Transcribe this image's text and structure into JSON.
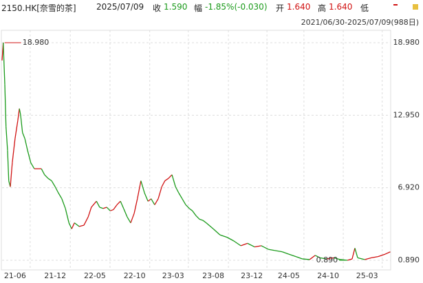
{
  "header": {
    "code": "2150.HK[奈雪的茶]",
    "date": "2025/07/09",
    "close_label": "收",
    "close": "1.590",
    "change_label": "幅",
    "change": "-1.85%(-0.030)",
    "open_label": "开",
    "open": "1.640",
    "high_label": "高",
    "high": "1.640",
    "low_label": "低",
    "range": "2021/06/30-2025/07/09(988日)"
  },
  "chart_data": {
    "type": "line",
    "up_color": "#d01010",
    "down_color": "#1a9a1a",
    "x": [
      0,
      3,
      7,
      10,
      14,
      17,
      21,
      26,
      33,
      40,
      44,
      47,
      52,
      58,
      65,
      73,
      82,
      91,
      100,
      108,
      117,
      126,
      135,
      143,
      152,
      161,
      170,
      177,
      184,
      196,
      208,
      219,
      227,
      240,
      248,
      257,
      266,
      275,
      283,
      292,
      301,
      309,
      318,
      327,
      336,
      344,
      353,
      362,
      371,
      379,
      388,
      397,
      406,
      414,
      423,
      432,
      441,
      449,
      458,
      467,
      476,
      484,
      493,
      502,
      511,
      519,
      537,
      554,
      572,
      589,
      607,
      624,
      642,
      659,
      677,
      694,
      712,
      729,
      747,
      764,
      782,
      796,
      808,
      825,
      843,
      860,
      878,
      890,
      897,
      904,
      922,
      939,
      956,
      974,
      987
    ],
    "values": [
      17.5,
      18.98,
      15.5,
      12,
      10,
      7.5,
      7,
      9,
      11,
      12.5,
      13.5,
      13,
      11.5,
      11,
      10,
      9,
      8.5,
      8.5,
      8.5,
      8,
      7.7,
      7.5,
      7,
      6.5,
      6,
      5.2,
      4,
      3.5,
      4,
      3.7,
      3.8,
      4.5,
      5.3,
      5.8,
      5.3,
      5.2,
      5.3,
      5,
      5.1,
      5.5,
      5.8,
      5.2,
      4.5,
      4,
      4.8,
      6,
      7.5,
      6.5,
      5.8,
      6,
      5.5,
      6,
      7,
      7.5,
      7.7,
      8,
      7,
      6.5,
      6,
      5.5,
      5.2,
      5,
      4.6,
      4.3,
      4.2,
      4,
      3.5,
      3,
      2.8,
      2.5,
      2.1,
      2.3,
      2.0,
      2.1,
      1.8,
      1.7,
      1.6,
      1.4,
      1.2,
      1.0,
      0.95,
      1.3,
      1.1,
      1.0,
      1.1,
      0.95,
      0.89,
      1.0,
      1.9,
      1.1,
      0.95,
      1.1,
      1.2,
      1.4,
      1.59
    ],
    "xlim": [
      0,
      988
    ],
    "ylim": [
      0.203,
      19.78
    ],
    "xticks": [
      {
        "value": 33,
        "label": "21-06"
      },
      {
        "value": 135,
        "label": "21-12"
      },
      {
        "value": 236,
        "label": "22-05"
      },
      {
        "value": 337,
        "label": "22-10"
      },
      {
        "value": 435,
        "label": "23-03"
      },
      {
        "value": 537,
        "label": "23-08"
      },
      {
        "value": 635,
        "label": "23-12"
      },
      {
        "value": 729,
        "label": "24-05"
      },
      {
        "value": 829,
        "label": "24-10"
      },
      {
        "value": 928,
        "label": "25-03"
      }
    ],
    "yticks": [
      {
        "value": 18.98,
        "label": "18.980"
      },
      {
        "value": 12.95,
        "label": "12.950"
      },
      {
        "value": 6.92,
        "label": "6.920"
      },
      {
        "value": 0.89,
        "label": "0.890"
      }
    ],
    "annotations": [
      {
        "text": "18.980",
        "x": 3,
        "y": 18.98
      },
      {
        "text": "0.890",
        "x": 878,
        "y": 0.89
      }
    ],
    "grid": true
  }
}
